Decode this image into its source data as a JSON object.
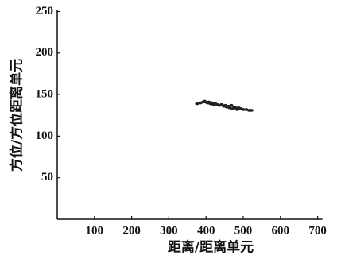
{
  "chart_data": {
    "type": "scatter",
    "xlabel": "距离/距离单元",
    "ylabel": "方位/方位距离单元",
    "x": [
      376,
      385,
      392,
      396,
      400,
      404,
      408,
      412,
      416,
      420,
      425,
      430,
      436,
      442,
      448,
      452,
      456,
      460,
      464,
      468,
      472,
      476,
      480,
      484,
      488,
      494,
      500,
      508,
      516,
      522
    ],
    "y": [
      139,
      140,
      141,
      142,
      141,
      140,
      141,
      139,
      140,
      138,
      139,
      138,
      137,
      138,
      136,
      137,
      135,
      136,
      134,
      137,
      133,
      135,
      134,
      132,
      134,
      133,
      132,
      132,
      131,
      131
    ],
    "color": "#222222",
    "xlim": [
      0,
      700
    ],
    "xticks": [
      100,
      200,
      300,
      400,
      500,
      600,
      700
    ],
    "ylim": [
      0,
      250
    ],
    "yticks": [
      50,
      100,
      150,
      200,
      250
    ]
  }
}
